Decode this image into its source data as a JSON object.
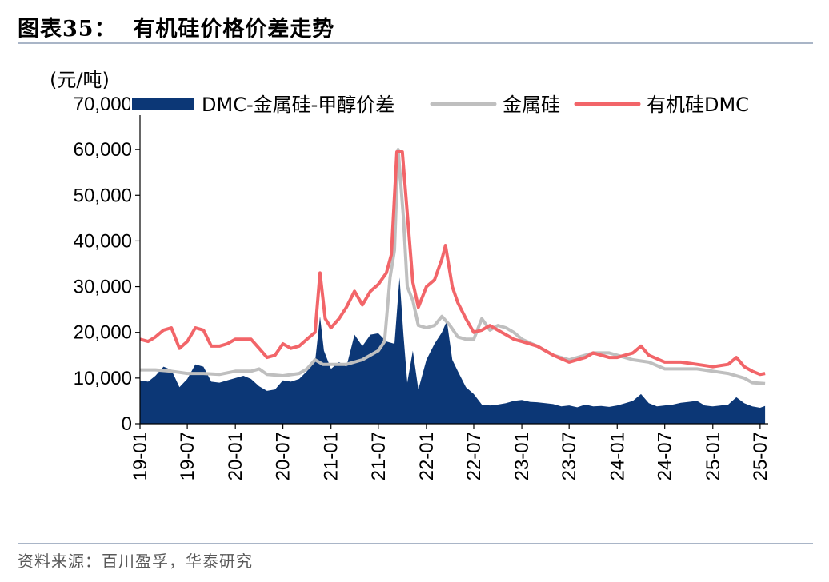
{
  "figure": {
    "title": "图表35：  有机硅价格价差走势",
    "source": "资料来源：百川盈孚，华泰研究"
  },
  "chart_data": {
    "type": "line",
    "ylabel": "(元/吨)",
    "ylim": [
      0,
      70000
    ],
    "yticks": [
      0,
      10000,
      20000,
      30000,
      40000,
      50000,
      60000,
      70000
    ],
    "ytick_labels": [
      "0",
      "10,000",
      "20,000",
      "30,000",
      "40,000",
      "50,000",
      "60,000",
      "70,000"
    ],
    "xlim": [
      "2019-01",
      "2025-08"
    ],
    "xtick_labels": [
      "19-01",
      "19-07",
      "20-01",
      "20-07",
      "21-01",
      "21-07",
      "22-01",
      "22-07",
      "23-01",
      "23-07",
      "24-01",
      "24-07",
      "25-01",
      "25-07"
    ],
    "grid": false,
    "legend_position": "top",
    "series": [
      {
        "name": "DMC-金属硅-甲醇价差",
        "kind": "area",
        "color": "#0c3776",
        "points": [
          [
            "2019-01-01",
            9500
          ],
          [
            "2019-02-01",
            9200
          ],
          [
            "2019-03-01",
            10500
          ],
          [
            "2019-04-01",
            12500
          ],
          [
            "2019-05-01",
            11800
          ],
          [
            "2019-06-01",
            8000
          ],
          [
            "2019-07-01",
            9800
          ],
          [
            "2019-08-01",
            13000
          ],
          [
            "2019-09-01",
            12500
          ],
          [
            "2019-10-01",
            9200
          ],
          [
            "2019-11-01",
            9000
          ],
          [
            "2019-12-01",
            9500
          ],
          [
            "2020-01-01",
            10000
          ],
          [
            "2020-02-01",
            10500
          ],
          [
            "2020-03-01",
            9800
          ],
          [
            "2020-04-01",
            8200
          ],
          [
            "2020-05-01",
            7200
          ],
          [
            "2020-06-01",
            7500
          ],
          [
            "2020-07-01",
            9500
          ],
          [
            "2020-08-01",
            9200
          ],
          [
            "2020-09-01",
            9800
          ],
          [
            "2020-10-01",
            11500
          ],
          [
            "2020-11-01",
            13500
          ],
          [
            "2020-11-20",
            23500
          ],
          [
            "2020-12-05",
            16000
          ],
          [
            "2021-01-01",
            12000
          ],
          [
            "2021-02-01",
            13500
          ],
          [
            "2021-03-01",
            12500
          ],
          [
            "2021-04-01",
            19500
          ],
          [
            "2021-05-01",
            17000
          ],
          [
            "2021-06-01",
            19500
          ],
          [
            "2021-07-01",
            19800
          ],
          [
            "2021-08-01",
            18000
          ],
          [
            "2021-09-01",
            17500
          ],
          [
            "2021-09-20",
            32000
          ],
          [
            "2021-10-05",
            19500
          ],
          [
            "2021-10-20",
            9000
          ],
          [
            "2021-11-10",
            16000
          ],
          [
            "2021-12-01",
            7500
          ],
          [
            "2022-01-01",
            14000
          ],
          [
            "2022-02-01",
            17500
          ],
          [
            "2022-03-01",
            20000
          ],
          [
            "2022-03-20",
            22500
          ],
          [
            "2022-04-10",
            14000
          ],
          [
            "2022-05-01",
            11500
          ],
          [
            "2022-06-01",
            8000
          ],
          [
            "2022-07-01",
            6500
          ],
          [
            "2022-08-01",
            4200
          ],
          [
            "2022-09-01",
            4000
          ],
          [
            "2022-10-01",
            4200
          ],
          [
            "2022-11-01",
            4500
          ],
          [
            "2022-12-01",
            5000
          ],
          [
            "2023-01-01",
            5200
          ],
          [
            "2023-02-01",
            4800
          ],
          [
            "2023-03-01",
            4700
          ],
          [
            "2023-04-01",
            4500
          ],
          [
            "2023-05-01",
            4300
          ],
          [
            "2023-06-01",
            3800
          ],
          [
            "2023-07-01",
            4000
          ],
          [
            "2023-08-01",
            3600
          ],
          [
            "2023-09-01",
            4200
          ],
          [
            "2023-10-01",
            3800
          ],
          [
            "2023-11-01",
            3900
          ],
          [
            "2023-12-01",
            3700
          ],
          [
            "2024-01-01",
            4000
          ],
          [
            "2024-02-01",
            4500
          ],
          [
            "2024-03-01",
            5000
          ],
          [
            "2024-04-01",
            6500
          ],
          [
            "2024-05-01",
            4500
          ],
          [
            "2024-06-01",
            3800
          ],
          [
            "2024-07-01",
            4000
          ],
          [
            "2024-08-01",
            4200
          ],
          [
            "2024-09-01",
            4600
          ],
          [
            "2024-10-01",
            4800
          ],
          [
            "2024-11-01",
            5000
          ],
          [
            "2024-12-01",
            4000
          ],
          [
            "2025-01-01",
            3800
          ],
          [
            "2025-02-01",
            4000
          ],
          [
            "2025-03-01",
            4200
          ],
          [
            "2025-04-01",
            5800
          ],
          [
            "2025-05-01",
            4500
          ],
          [
            "2025-06-01",
            3800
          ],
          [
            "2025-07-01",
            3500
          ],
          [
            "2025-07-20",
            3900
          ]
        ]
      },
      {
        "name": "金属硅",
        "kind": "line",
        "color": "#bfbfbf",
        "points": [
          [
            "2019-01-01",
            11800
          ],
          [
            "2019-03-01",
            11800
          ],
          [
            "2019-05-01",
            11500
          ],
          [
            "2019-07-01",
            11000
          ],
          [
            "2019-09-01",
            11000
          ],
          [
            "2019-11-01",
            10800
          ],
          [
            "2020-01-01",
            11500
          ],
          [
            "2020-03-01",
            11500
          ],
          [
            "2020-04-01",
            12000
          ],
          [
            "2020-05-01",
            10800
          ],
          [
            "2020-07-01",
            10500
          ],
          [
            "2020-09-01",
            11000
          ],
          [
            "2020-10-01",
            12000
          ],
          [
            "2020-11-01",
            14000
          ],
          [
            "2020-12-01",
            13000
          ],
          [
            "2021-01-01",
            13000
          ],
          [
            "2021-03-01",
            13000
          ],
          [
            "2021-05-01",
            14000
          ],
          [
            "2021-07-01",
            16000
          ],
          [
            "2021-07-25",
            18000
          ],
          [
            "2021-08-15",
            32000
          ],
          [
            "2021-09-01",
            38000
          ],
          [
            "2021-09-15",
            60000
          ],
          [
            "2021-10-05",
            45000
          ],
          [
            "2021-10-20",
            30000
          ],
          [
            "2021-11-10",
            27000
          ],
          [
            "2021-12-01",
            21500
          ],
          [
            "2022-01-01",
            21000
          ],
          [
            "2022-02-01",
            21500
          ],
          [
            "2022-03-01",
            23500
          ],
          [
            "2022-04-01",
            21500
          ],
          [
            "2022-05-01",
            19000
          ],
          [
            "2022-06-01",
            18500
          ],
          [
            "2022-07-01",
            18500
          ],
          [
            "2022-08-01",
            23000
          ],
          [
            "2022-09-01",
            20500
          ],
          [
            "2022-10-01",
            21500
          ],
          [
            "2022-11-01",
            21000
          ],
          [
            "2022-12-01",
            20000
          ],
          [
            "2023-01-01",
            18500
          ],
          [
            "2023-03-01",
            17000
          ],
          [
            "2023-05-01",
            15000
          ],
          [
            "2023-07-01",
            14000
          ],
          [
            "2023-09-01",
            15000
          ],
          [
            "2023-10-01",
            15500
          ],
          [
            "2023-12-01",
            15500
          ],
          [
            "2024-01-01",
            15000
          ],
          [
            "2024-03-01",
            14000
          ],
          [
            "2024-05-01",
            13500
          ],
          [
            "2024-07-01",
            12000
          ],
          [
            "2024-09-01",
            12000
          ],
          [
            "2024-11-01",
            12000
          ],
          [
            "2025-01-01",
            11500
          ],
          [
            "2025-03-01",
            11000
          ],
          [
            "2025-05-01",
            10000
          ],
          [
            "2025-06-01",
            9000
          ],
          [
            "2025-07-20",
            8800
          ]
        ]
      },
      {
        "name": "有机硅DMC",
        "kind": "line",
        "color": "#f26569",
        "points": [
          [
            "2019-01-01",
            18500
          ],
          [
            "2019-02-01",
            18000
          ],
          [
            "2019-03-01",
            19000
          ],
          [
            "2019-04-01",
            20500
          ],
          [
            "2019-05-01",
            21000
          ],
          [
            "2019-06-01",
            16500
          ],
          [
            "2019-07-01",
            18000
          ],
          [
            "2019-08-01",
            21000
          ],
          [
            "2019-09-01",
            20500
          ],
          [
            "2019-10-01",
            17000
          ],
          [
            "2019-11-01",
            17000
          ],
          [
            "2019-12-01",
            17500
          ],
          [
            "2020-01-01",
            18500
          ],
          [
            "2020-03-01",
            18500
          ],
          [
            "2020-04-01",
            16500
          ],
          [
            "2020-05-01",
            14500
          ],
          [
            "2020-06-01",
            15000
          ],
          [
            "2020-07-01",
            17500
          ],
          [
            "2020-08-01",
            16500
          ],
          [
            "2020-09-01",
            17000
          ],
          [
            "2020-10-01",
            18500
          ],
          [
            "2020-11-01",
            20000
          ],
          [
            "2020-11-20",
            33000
          ],
          [
            "2020-12-10",
            23000
          ],
          [
            "2021-01-01",
            21000
          ],
          [
            "2021-02-01",
            23000
          ],
          [
            "2021-03-01",
            25500
          ],
          [
            "2021-04-01",
            29000
          ],
          [
            "2021-05-01",
            26000
          ],
          [
            "2021-06-01",
            29000
          ],
          [
            "2021-07-01",
            30500
          ],
          [
            "2021-08-01",
            33000
          ],
          [
            "2021-08-20",
            37000
          ],
          [
            "2021-09-10",
            59500
          ],
          [
            "2021-10-01",
            59500
          ],
          [
            "2021-10-20",
            46000
          ],
          [
            "2021-11-10",
            31000
          ],
          [
            "2021-12-01",
            25500
          ],
          [
            "2022-01-01",
            30000
          ],
          [
            "2022-02-01",
            31500
          ],
          [
            "2022-03-01",
            36000
          ],
          [
            "2022-03-15",
            39000
          ],
          [
            "2022-04-10",
            30000
          ],
          [
            "2022-05-01",
            26500
          ],
          [
            "2022-06-01",
            23000
          ],
          [
            "2022-07-01",
            20000
          ],
          [
            "2022-08-01",
            20500
          ],
          [
            "2022-09-01",
            21500
          ],
          [
            "2022-10-01",
            20500
          ],
          [
            "2022-11-01",
            19500
          ],
          [
            "2022-12-01",
            18500
          ],
          [
            "2023-01-01",
            18000
          ],
          [
            "2023-03-01",
            17000
          ],
          [
            "2023-05-01",
            15000
          ],
          [
            "2023-07-01",
            13500
          ],
          [
            "2023-09-01",
            14500
          ],
          [
            "2023-10-01",
            15500
          ],
          [
            "2023-12-01",
            14500
          ],
          [
            "2024-01-01",
            14500
          ],
          [
            "2024-03-01",
            15500
          ],
          [
            "2024-04-01",
            17000
          ],
          [
            "2024-05-01",
            15000
          ],
          [
            "2024-07-01",
            13500
          ],
          [
            "2024-09-01",
            13500
          ],
          [
            "2024-11-01",
            13000
          ],
          [
            "2025-01-01",
            12500
          ],
          [
            "2025-03-01",
            13000
          ],
          [
            "2025-04-01",
            14500
          ],
          [
            "2025-05-01",
            12500
          ],
          [
            "2025-06-01",
            11500
          ],
          [
            "2025-07-01",
            10800
          ],
          [
            "2025-07-20",
            11000
          ]
        ]
      }
    ]
  }
}
